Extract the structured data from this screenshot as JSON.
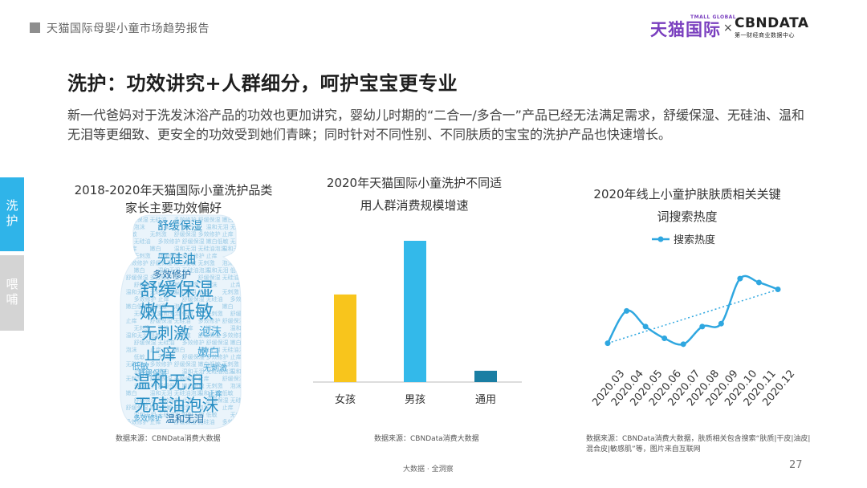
{
  "header": {
    "report_title": "天猫国际母婴小童市场趋势报告",
    "logo_tmall": "天猫国际",
    "logo_tmall_sub": "TMALL GLOBAL",
    "logo_x": "×",
    "logo_cbn": "CBNDATA",
    "logo_cbn_sub": "第一财经商业数据中心"
  },
  "page": {
    "title": "洗护：功效讲究+人群细分，呵护宝宝更专业",
    "intro": "新一代爸妈对于洗发沐浴产品的功效也更加讲究，婴幼儿时期的“二合一/多合一”产品已经无法满足需求，舒缓保湿、无硅油、温和无泪等更细致、更安全的功效受到她们青睐；同时针对不同性别、不同肤质的宝宝的洗护产品也快速增长。"
  },
  "side_tabs": [
    {
      "label": "洗护",
      "active": true
    },
    {
      "label": "喂哺",
      "active": false
    }
  ],
  "wordcloud": {
    "title_line1": "2018-2020年天猫国际小童洗护品类",
    "title_line2": "家长主要功效偏好",
    "source": "数据来源：CBNData消费大数据",
    "words": [
      {
        "text": "舒缓保湿",
        "weight": 3
      },
      {
        "text": "无硅油",
        "weight": 2
      },
      {
        "text": "多效修护",
        "weight": 1
      },
      {
        "text": "舒缓保湿",
        "weight": 5
      },
      {
        "text": "嫩白低敏",
        "weight": 5
      },
      {
        "text": "无刺激",
        "weight": 4
      },
      {
        "text": "泡沫",
        "weight": 2
      },
      {
        "text": "止痒",
        "weight": 4
      },
      {
        "text": "嫩白",
        "weight": 2
      },
      {
        "text": "温和无泪",
        "weight": 5
      },
      {
        "text": "无硅油泡沫",
        "weight": 5
      },
      {
        "text": "温和无泪",
        "weight": 2
      },
      {
        "text": "低敏",
        "weight": 1
      },
      {
        "text": "无刺激",
        "weight": 1
      },
      {
        "text": "舒缓保湿",
        "weight": 1
      },
      {
        "text": "多效修护",
        "weight": 1
      },
      {
        "text": "止痒",
        "weight": 1
      }
    ],
    "colors": [
      "#2a8fc4",
      "#1f6fa8",
      "#4aa6d6"
    ]
  },
  "chart_data": [
    {
      "type": "bar",
      "title": "2020年天猫国际小童洗护不同适用人群消费规模增速",
      "categories": [
        "女孩",
        "男孩",
        "通用"
      ],
      "values": [
        62,
        100,
        8
      ],
      "colors": [
        "#f8c51c",
        "#33b9ea",
        "#1a7ea3"
      ],
      "source": "数据来源：CBNData消费大数据"
    },
    {
      "type": "line",
      "title": "2020年线上小童护肤肤质相关关键词搜索热度",
      "series": [
        {
          "name": "搜索热度",
          "values": [
            20,
            53,
            37,
            25,
            19,
            37,
            40,
            86,
            82,
            75
          ]
        }
      ],
      "x": [
        "2020.03",
        "2020.04",
        "2020.05",
        "2020.06",
        "2020.07",
        "2020.08",
        "2020.09",
        "2020.10",
        "2020.11",
        "2020.12"
      ],
      "trendline": true,
      "color": "#2fa7e0",
      "source": "数据来源：CBNData消费大数据，肤质相关包含搜索“肤质|干皮|油皮|混合皮|敏感肌”等，图片来自互联网"
    }
  ],
  "footer": {
    "center": "大数据 · 全洞察",
    "page_number": "27"
  }
}
